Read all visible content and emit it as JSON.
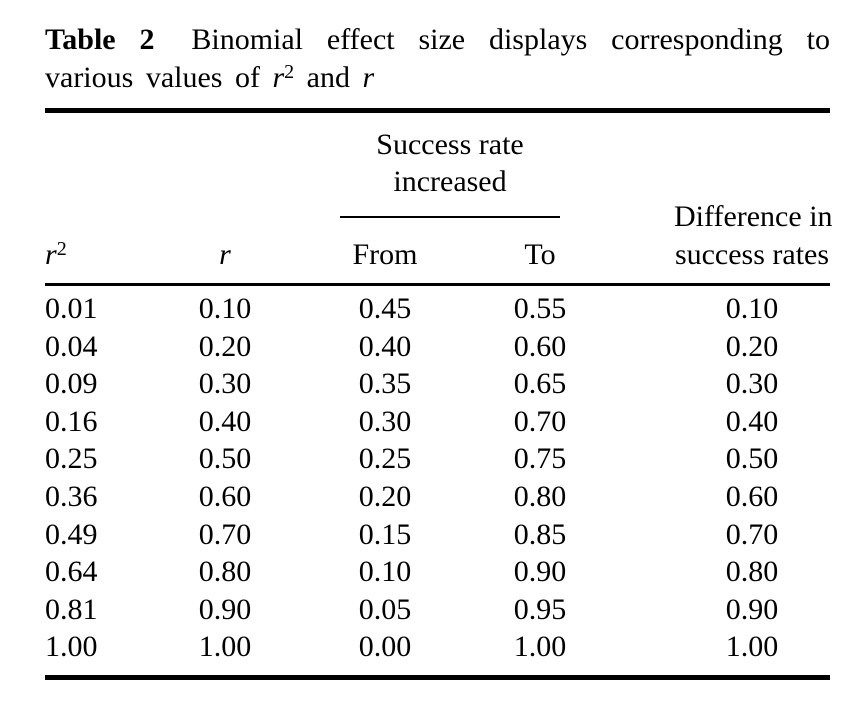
{
  "colors": {
    "text": "#000000",
    "background": "#ffffff",
    "rule": "#000000"
  },
  "caption": {
    "number": "Table 2",
    "line1_rest": "Binomial effect size displays corresponding to",
    "line2": {
      "prefix": "various values of ",
      "r2_base": "r",
      "r2_sup": "2",
      "conjunction": " and ",
      "r_italic": "r"
    }
  },
  "table": {
    "spanner": {
      "line1": "Success rate",
      "line2": "increased"
    },
    "headers": {
      "col1_base": "r",
      "col1_sup": "2",
      "col2": "r",
      "col3": "From",
      "col4": "To",
      "col5_line1": "Difference in",
      "col5_line2": "success rates"
    },
    "rows": [
      [
        "0.01",
        "0.10",
        "0.45",
        "0.55",
        "0.10"
      ],
      [
        "0.04",
        "0.20",
        "0.40",
        "0.60",
        "0.20"
      ],
      [
        "0.09",
        "0.30",
        "0.35",
        "0.65",
        "0.30"
      ],
      [
        "0.16",
        "0.40",
        "0.30",
        "0.70",
        "0.40"
      ],
      [
        "0.25",
        "0.50",
        "0.25",
        "0.75",
        "0.50"
      ],
      [
        "0.36",
        "0.60",
        "0.20",
        "0.80",
        "0.60"
      ],
      [
        "0.49",
        "0.70",
        "0.15",
        "0.85",
        "0.70"
      ],
      [
        "0.64",
        "0.80",
        "0.10",
        "0.90",
        "0.80"
      ],
      [
        "0.81",
        "0.90",
        "0.05",
        "0.95",
        "0.90"
      ],
      [
        "1.00",
        "1.00",
        "0.00",
        "1.00",
        "1.00"
      ]
    ]
  }
}
